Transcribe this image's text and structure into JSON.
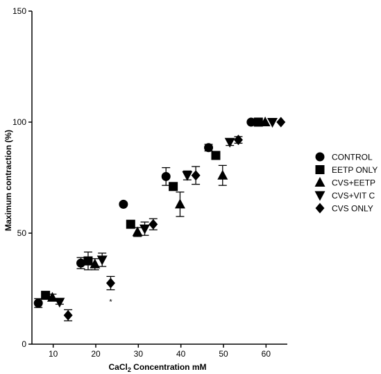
{
  "chart_data": {
    "type": "scatter",
    "xlabel_main": "CaCl",
    "xlabel_sub": "2",
    "xlabel_rest": " Concentration mM",
    "ylabel": "Maximum contraction (%)",
    "xlim": [
      5,
      65
    ],
    "ylim": [
      0,
      150
    ],
    "x_ticks": [
      {
        "value": 10,
        "label": "10"
      },
      {
        "value": 20,
        "label": "20"
      },
      {
        "value": 30,
        "label": "30"
      },
      {
        "value": 40,
        "label": "40"
      },
      {
        "value": 50,
        "label": "50"
      },
      {
        "value": 60,
        "label": "60"
      }
    ],
    "y_ticks": [
      {
        "value": 0,
        "label": "0"
      },
      {
        "value": 50,
        "label": "50"
      },
      {
        "value": 100,
        "label": "100"
      },
      {
        "value": 150,
        "label": "150"
      }
    ],
    "legend_position": "right",
    "series": [
      {
        "name": "CONTROL",
        "marker": "circle",
        "points": [
          {
            "x": 6.5,
            "y": 18.5,
            "err": 2
          },
          {
            "x": 16.5,
            "y": 36.5,
            "err": 2.5
          },
          {
            "x": 26.5,
            "y": 63,
            "err": 0
          },
          {
            "x": 36.5,
            "y": 75.5,
            "err": 4
          },
          {
            "x": 46.5,
            "y": 88.5,
            "err": 1.5
          },
          {
            "x": 56.5,
            "y": 100,
            "err": 0
          }
        ]
      },
      {
        "name": "EETP ONLY",
        "marker": "square",
        "points": [
          {
            "x": 8.2,
            "y": 22,
            "err": 1
          },
          {
            "x": 18.2,
            "y": 37.5,
            "err": 4
          },
          {
            "x": 28.2,
            "y": 54,
            "err": 0
          },
          {
            "x": 38.2,
            "y": 71,
            "err": 0
          },
          {
            "x": 48.2,
            "y": 85,
            "err": 0
          },
          {
            "x": 58.2,
            "y": 100,
            "err": 0
          }
        ]
      },
      {
        "name": "CVS+EETP",
        "marker": "triangle-up",
        "points": [
          {
            "x": 9.8,
            "y": 21,
            "err": 1.5
          },
          {
            "x": 19.8,
            "y": 36,
            "err": 2.5
          },
          {
            "x": 29.8,
            "y": 50.5,
            "err": 2
          },
          {
            "x": 39.8,
            "y": 63,
            "err": 5.5
          },
          {
            "x": 49.8,
            "y": 76,
            "err": 4.5
          },
          {
            "x": 59.8,
            "y": 100,
            "err": 0
          }
        ]
      },
      {
        "name": "CVS+VIT C",
        "marker": "triangle-down",
        "points": [
          {
            "x": 11.5,
            "y": 19,
            "err": 1
          },
          {
            "x": 21.5,
            "y": 38,
            "err": 3
          },
          {
            "x": 31.5,
            "y": 52,
            "err": 3
          },
          {
            "x": 41.5,
            "y": 76,
            "err": 2
          },
          {
            "x": 51.5,
            "y": 91,
            "err": 1.5
          },
          {
            "x": 61.5,
            "y": 100,
            "err": 0
          }
        ]
      },
      {
        "name": "CVS ONLY",
        "marker": "diamond",
        "points": [
          {
            "x": 13.5,
            "y": 13,
            "err": 2.5
          },
          {
            "x": 23.5,
            "y": 27.5,
            "err": 3
          },
          {
            "x": 33.5,
            "y": 54,
            "err": 2.5
          },
          {
            "x": 43.5,
            "y": 76,
            "err": 4
          },
          {
            "x": 53.5,
            "y": 92,
            "err": 1.5
          },
          {
            "x": 63.5,
            "y": 100,
            "err": 0
          }
        ]
      }
    ],
    "annotations": [
      {
        "text": "*",
        "x": 23.5,
        "y": 20.5
      }
    ]
  }
}
